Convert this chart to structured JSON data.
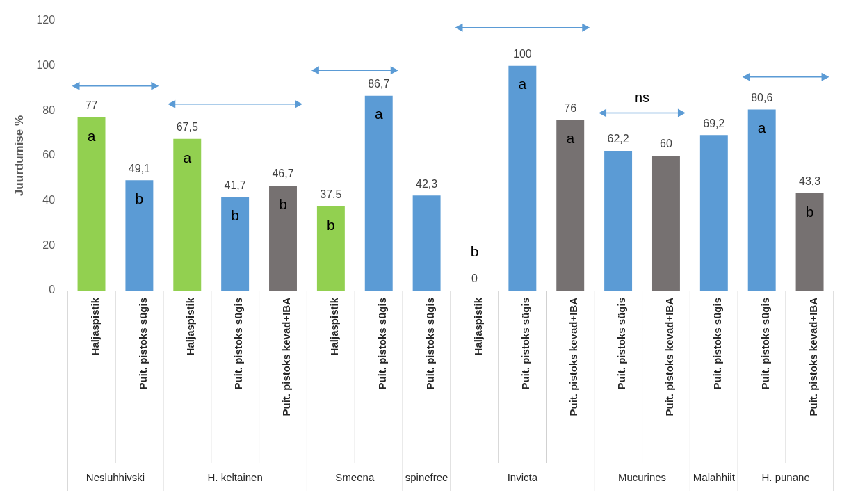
{
  "chart_data": {
    "type": "bar",
    "ylabel": "Juurdumise %",
    "ylim": [
      0,
      120
    ],
    "yticks": [
      0,
      20,
      40,
      60,
      80,
      100,
      120
    ],
    "categories": [
      "Haljaspistik",
      "Puit. pistoks sügis",
      "Haljaspistik",
      "Puit. pistoks sügis",
      "Puit. pistoks kevad+IBA",
      "Haljaspistik",
      "Puit. pistoks sügis",
      "Puit. pistoks sügis",
      "Haljaspistik",
      "Puit. pistoks sügis",
      "Puit. pistoks kevad+IBA",
      "Puit. pistoks sügis",
      "Puit. pistoks kevad+IBA",
      "Puit. pistoks sügis",
      "Puit. pistoks sügis",
      "Puit. pistoks kevad+IBA"
    ],
    "series": [
      {
        "values": [
          77,
          49.1,
          null,
          null,
          null,
          null,
          null,
          null,
          null,
          null,
          null,
          null,
          null,
          null,
          null,
          null
        ],
        "colors": [
          "#92d050",
          "#5b9bd5",
          null,
          null,
          null,
          null,
          null,
          null,
          null,
          null,
          null,
          null,
          null,
          null,
          null,
          null
        ],
        "value_labels": [
          "77",
          "49,1",
          null,
          null,
          null,
          null,
          null,
          null,
          null,
          null,
          null,
          null,
          null,
          null,
          null,
          null
        ]
      },
      {
        "values": [
          null,
          null,
          67.5,
          41.7,
          46.7,
          null,
          null,
          null,
          null,
          null,
          null,
          null,
          null,
          null,
          null,
          null
        ],
        "colors": [
          null,
          null,
          "#92d050",
          "#5b9bd5",
          "#767171",
          null,
          null,
          null,
          null,
          null,
          null,
          null,
          null,
          null,
          null,
          null
        ],
        "value_labels": [
          null,
          null,
          "67,5",
          "41,7",
          "46,7",
          null,
          null,
          null,
          null,
          null,
          null,
          null,
          null,
          null,
          null,
          null
        ]
      },
      {
        "values": [
          null,
          null,
          null,
          null,
          null,
          37.5,
          86.7,
          null,
          null,
          null,
          null,
          null,
          null,
          null,
          null,
          null
        ],
        "colors": [
          null,
          null,
          null,
          null,
          null,
          "#92d050",
          "#5b9bd5",
          null,
          null,
          null,
          null,
          null,
          null,
          null,
          null,
          null
        ],
        "value_labels": [
          null,
          null,
          null,
          null,
          null,
          "37,5",
          "86,7",
          null,
          null,
          null,
          null,
          null,
          null,
          null,
          null,
          null
        ]
      },
      {
        "values": [
          null,
          null,
          null,
          null,
          null,
          null,
          null,
          42.3,
          null,
          null,
          null,
          null,
          null,
          null,
          null,
          null
        ],
        "colors": [
          null,
          null,
          null,
          null,
          null,
          null,
          null,
          "#5b9bd5",
          null,
          null,
          null,
          null,
          null,
          null,
          null,
          null
        ],
        "value_labels": [
          null,
          null,
          null,
          null,
          null,
          null,
          null,
          "42,3",
          null,
          null,
          null,
          null,
          null,
          null,
          null,
          null
        ]
      },
      {
        "values": [
          null,
          null,
          null,
          null,
          null,
          null,
          null,
          null,
          0,
          100,
          76,
          null,
          null,
          null,
          null,
          null
        ],
        "colors": [
          null,
          null,
          null,
          null,
          null,
          null,
          null,
          null,
          "#92d050",
          "#5b9bd5",
          "#767171",
          null,
          null,
          null,
          null,
          null
        ],
        "value_labels": [
          null,
          null,
          null,
          null,
          null,
          null,
          null,
          null,
          "0",
          "100",
          "76",
          null,
          null,
          null,
          null,
          null
        ]
      },
      {
        "values": [
          null,
          null,
          null,
          null,
          null,
          null,
          null,
          null,
          null,
          null,
          null,
          62.2,
          60,
          null,
          null,
          null
        ],
        "colors": [
          null,
          null,
          null,
          null,
          null,
          null,
          null,
          null,
          null,
          null,
          null,
          "#5b9bd5",
          "#767171",
          null,
          null,
          null
        ],
        "value_labels": [
          null,
          null,
          null,
          null,
          null,
          null,
          null,
          null,
          null,
          null,
          null,
          "62,2",
          "60",
          null,
          null,
          null
        ]
      },
      {
        "values": [
          null,
          null,
          null,
          null,
          null,
          null,
          null,
          null,
          null,
          null,
          null,
          null,
          null,
          69.2,
          null,
          null
        ],
        "colors": [
          null,
          null,
          null,
          null,
          null,
          null,
          null,
          null,
          null,
          null,
          null,
          null,
          null,
          "#5b9bd5",
          null,
          null
        ],
        "value_labels": [
          null,
          null,
          null,
          null,
          null,
          null,
          null,
          null,
          null,
          null,
          null,
          null,
          null,
          "69,2",
          null,
          null
        ]
      },
      {
        "values": [
          null,
          null,
          null,
          null,
          null,
          null,
          null,
          null,
          null,
          null,
          null,
          null,
          null,
          null,
          80.6,
          43.3
        ],
        "colors": [
          null,
          null,
          null,
          null,
          null,
          null,
          null,
          null,
          null,
          null,
          null,
          null,
          null,
          null,
          "#5b9bd5",
          "#767171"
        ],
        "value_labels": [
          null,
          null,
          null,
          null,
          null,
          null,
          null,
          null,
          null,
          null,
          null,
          null,
          null,
          null,
          "80,6",
          "43,3"
        ]
      }
    ],
    "annotations": [
      "Nesluhhivski",
      "H. keltainen",
      "Smeena",
      "spinefree",
      "Invicta",
      "Mucurines",
      "Malahhiit",
      "H. punane",
      "a",
      "b",
      "a",
      "b",
      "b",
      "b",
      "a",
      "b",
      "a",
      "a",
      "a",
      "b",
      "ns"
    ]
  }
}
